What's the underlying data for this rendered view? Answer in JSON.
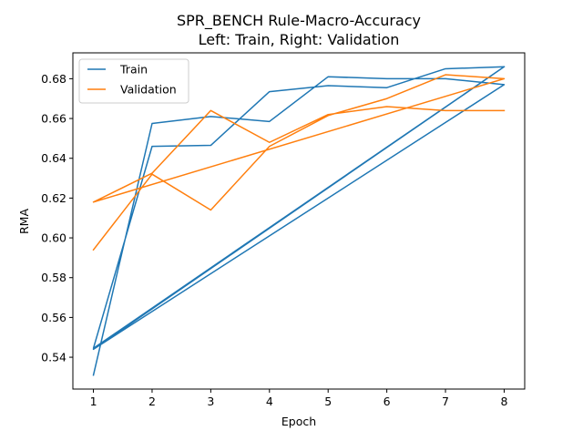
{
  "chart_data": {
    "type": "line",
    "title": "SPR_BENCH Rule-Macro-Accuracy",
    "subtitle": "Left: Train, Right: Validation",
    "xlabel": "Epoch",
    "ylabel": "RMA",
    "xlim": [
      0.65,
      8.35
    ],
    "ylim": [
      0.524,
      0.693
    ],
    "xticks": [
      "1",
      "2",
      "3",
      "4",
      "5",
      "6",
      "7",
      "8"
    ],
    "yticks": [
      "0.54",
      "0.56",
      "0.58",
      "0.60",
      "0.62",
      "0.64",
      "0.66",
      "0.68"
    ],
    "grid": false,
    "legend_position": "upper-left",
    "series": [
      {
        "name": "Train",
        "color": "#1f77b4",
        "points": [
          [
            1,
            0.531
          ],
          [
            2,
            0.6575
          ],
          [
            3,
            0.661
          ],
          [
            4,
            0.6585
          ],
          [
            5,
            0.681
          ],
          [
            6,
            0.68
          ],
          [
            7,
            0.68
          ],
          [
            8,
            0.677
          ],
          [
            1,
            0.544
          ],
          [
            8,
            0.686
          ],
          [
            1,
            0.5445
          ],
          [
            2,
            0.646
          ],
          [
            3,
            0.6465
          ],
          [
            4,
            0.6735
          ],
          [
            5,
            0.6765
          ],
          [
            6,
            0.6755
          ],
          [
            7,
            0.685
          ],
          [
            8,
            0.686
          ]
        ]
      },
      {
        "name": "Validation",
        "color": "#ff7f0e",
        "points": [
          [
            1,
            0.594
          ],
          [
            2,
            0.632
          ],
          [
            3,
            0.614
          ],
          [
            4,
            0.646
          ],
          [
            5,
            0.6615
          ],
          [
            6,
            0.67
          ],
          [
            7,
            0.682
          ],
          [
            8,
            0.68
          ],
          [
            1,
            0.618
          ],
          [
            8,
            0.68
          ],
          [
            1,
            0.618
          ],
          [
            2,
            0.6325
          ],
          [
            3,
            0.664
          ],
          [
            4,
            0.648
          ],
          [
            5,
            0.662
          ],
          [
            6,
            0.666
          ],
          [
            7,
            0.664
          ],
          [
            8,
            0.664
          ]
        ]
      }
    ]
  }
}
